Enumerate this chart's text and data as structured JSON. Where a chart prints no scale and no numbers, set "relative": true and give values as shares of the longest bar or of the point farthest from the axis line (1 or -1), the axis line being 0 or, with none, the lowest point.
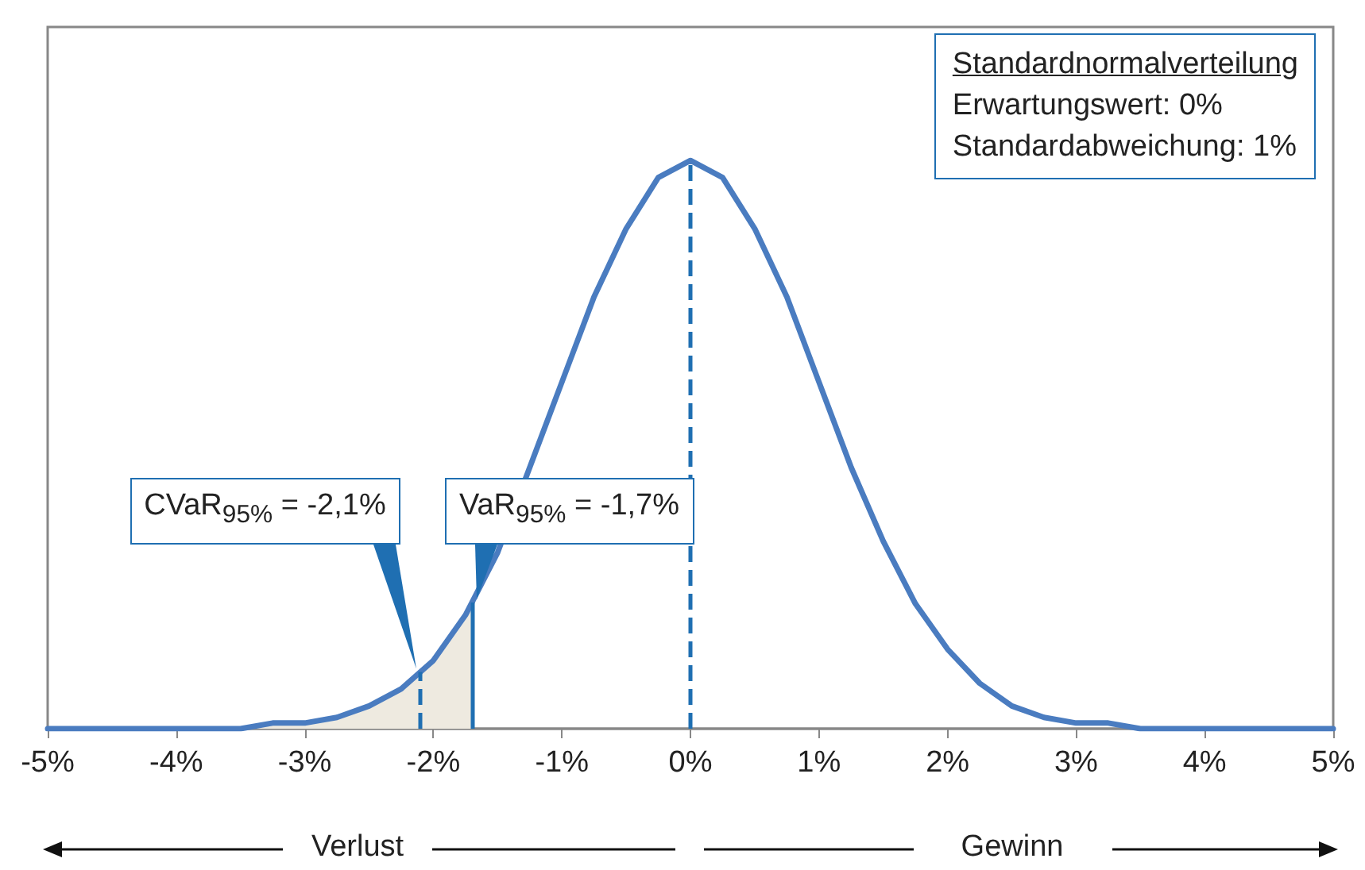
{
  "chart_data": {
    "type": "line",
    "relative": true,
    "x": [
      -5,
      -4.5,
      -4,
      -3.5,
      -3.25,
      -3,
      -2.75,
      -2.5,
      -2.25,
      -2,
      -1.75,
      -1.5,
      -1.25,
      -1,
      -0.75,
      -0.5,
      -0.25,
      0,
      0.25,
      0.5,
      0.75,
      1,
      1.25,
      1.5,
      1.75,
      2,
      2.25,
      2.5,
      2.75,
      3,
      3.25,
      3.5,
      4,
      4.5,
      5
    ],
    "series": [
      {
        "type": "area",
        "color": "#eeeae0",
        "x": [
          -5,
          -4.5,
          -4,
          -3.5,
          -3.25,
          -3,
          -2.75,
          -2.5,
          -2.25,
          -2,
          -1.75,
          -1.7
        ],
        "values": [
          0,
          0,
          0,
          0,
          0.01,
          0.01,
          0.02,
          0.04,
          0.07,
          0.12,
          0.2,
          0.22
        ]
      },
      {
        "color": "#4a7cc0",
        "values": [
          0,
          0,
          0,
          0,
          0.01,
          0.01,
          0.02,
          0.04,
          0.07,
          0.12,
          0.2,
          0.31,
          0.46,
          0.61,
          0.76,
          0.88,
          0.97,
          1,
          0.97,
          0.88,
          0.76,
          0.61,
          0.46,
          0.33,
          0.22,
          0.14,
          0.08,
          0.04,
          0.02,
          0.01,
          0.01,
          0,
          0,
          0,
          0
        ]
      }
    ],
    "xlim": [
      -5,
      5
    ],
    "xticks": [
      {
        "value": -5,
        "label": "-5%"
      },
      {
        "value": -4,
        "label": "-4%"
      },
      {
        "value": -3,
        "label": "-3%"
      },
      {
        "value": -2,
        "label": "-2%"
      },
      {
        "value": -1,
        "label": "-1%"
      },
      {
        "value": 0,
        "label": "0%"
      },
      {
        "value": 1,
        "label": "1%"
      },
      {
        "value": 2,
        "label": "2%"
      },
      {
        "value": 3,
        "label": "3%"
      },
      {
        "value": 4,
        "label": "4%"
      },
      {
        "value": 5,
        "label": "5%"
      }
    ],
    "ref_lines": [
      {
        "axis": "x",
        "value": -2.1,
        "label": "CVaR$_{95%}$ = -2,1%",
        "color": "#1f6fb2",
        "line_style": "dashed"
      },
      {
        "axis": "x",
        "value": -1.7,
        "label": "VaR$_{95%}$ = -1,7%",
        "color": "#1f6fb2",
        "line_style": "solid"
      },
      {
        "axis": "x",
        "value": 0,
        "color": "#1f6fb2",
        "line_style": "dashed"
      }
    ],
    "annotations": [
      "Standardnormalverteilung",
      "Erwartungswert: 0%",
      "Standardabweichung: 1%",
      "Verlust",
      "Gewinn"
    ],
    "marker": "none",
    "line_style": "solid"
  }
}
